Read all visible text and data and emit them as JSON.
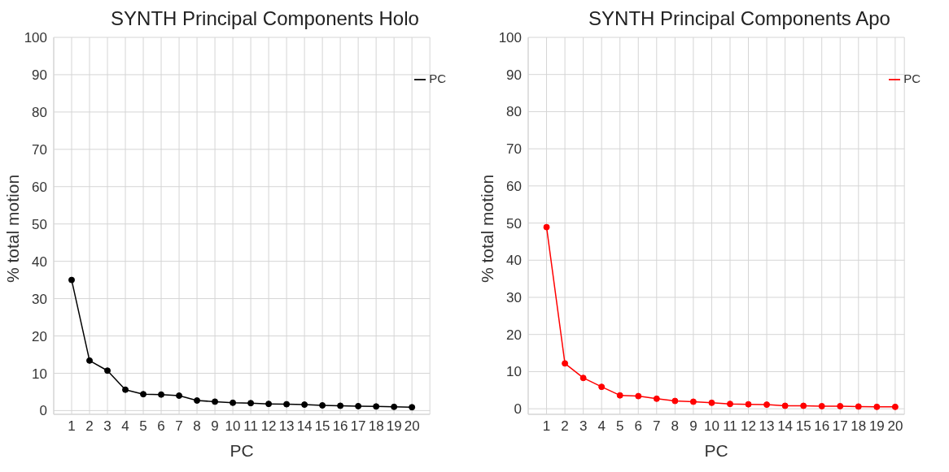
{
  "chart_data": [
    {
      "type": "line",
      "title": "SYNTH Principal Components Holo",
      "xlabel": "PC",
      "ylabel": "% total motion",
      "x": [
        1,
        2,
        3,
        4,
        5,
        6,
        7,
        8,
        9,
        10,
        11,
        12,
        13,
        14,
        15,
        16,
        17,
        18,
        19,
        20
      ],
      "series": [
        {
          "name": "PC",
          "color": "#000000",
          "values": [
            35,
            13.4,
            10.7,
            5.6,
            4.4,
            4.3,
            4.0,
            2.7,
            2.4,
            2.1,
            2.0,
            1.8,
            1.7,
            1.6,
            1.4,
            1.3,
            1.2,
            1.1,
            1.0,
            0.9
          ]
        }
      ],
      "xlim": [
        0,
        21
      ],
      "xticks": [
        1,
        2,
        3,
        4,
        5,
        6,
        7,
        8,
        9,
        10,
        11,
        12,
        13,
        14,
        15,
        16,
        17,
        18,
        19,
        20
      ],
      "ylim": [
        -1,
        100
      ],
      "yticks": [
        0,
        10,
        20,
        30,
        40,
        50,
        60,
        70,
        80,
        90,
        100
      ],
      "grid": true,
      "legend": "top right",
      "marker": "circle",
      "line_style": "solid"
    },
    {
      "type": "line",
      "title": "SYNTH Principal Components Apo",
      "xlabel": "PC",
      "ylabel": "% total motion",
      "x": [
        1,
        2,
        3,
        4,
        5,
        6,
        7,
        8,
        9,
        10,
        11,
        12,
        13,
        14,
        15,
        16,
        17,
        18,
        19,
        20
      ],
      "series": [
        {
          "name": "PC",
          "color": "#ff0000",
          "values": [
            48.9,
            12.2,
            8.3,
            5.9,
            3.6,
            3.4,
            2.7,
            2.1,
            1.9,
            1.6,
            1.3,
            1.2,
            1.1,
            0.8,
            0.8,
            0.7,
            0.7,
            0.6,
            0.5,
            0.5
          ]
        }
      ],
      "xlim": [
        0,
        20.5
      ],
      "xticks": [
        1,
        2,
        3,
        4,
        5,
        6,
        7,
        8,
        9,
        10,
        11,
        12,
        13,
        14,
        15,
        16,
        17,
        18,
        19,
        20
      ],
      "ylim": [
        -1.5,
        100
      ],
      "yticks": [
        0,
        10,
        20,
        30,
        40,
        50,
        60,
        70,
        80,
        90,
        100
      ],
      "grid": true,
      "legend": "top right",
      "marker": "circle",
      "line_style": "solid"
    }
  ]
}
